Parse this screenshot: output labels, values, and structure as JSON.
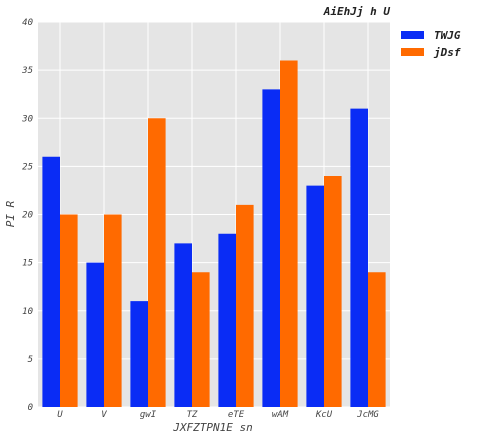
{
  "chart_data": {
    "type": "bar",
    "title": "AiEhJj h U",
    "xlabel": "JXFZTPN1E sn",
    "ylabel": "PI R",
    "categories": [
      "U",
      "V",
      "gwI",
      "TZ",
      "eTE",
      "wAM",
      "KcU",
      "JcMG"
    ],
    "series": [
      {
        "name": "TWJG",
        "color": "#0a2cf5",
        "values": [
          26,
          15,
          11,
          17,
          18,
          33,
          23,
          31
        ]
      },
      {
        "name": "jDsf",
        "color": "#ff6a00",
        "values": [
          20,
          20,
          30,
          14,
          21,
          36,
          24,
          14
        ]
      }
    ],
    "ylim": [
      0,
      40
    ],
    "yticks": [
      0,
      5,
      10,
      15,
      20,
      25,
      30,
      35,
      40
    ],
    "grid": true,
    "legend_position": "outside-right-top",
    "background_color": "#e5e5e5"
  }
}
